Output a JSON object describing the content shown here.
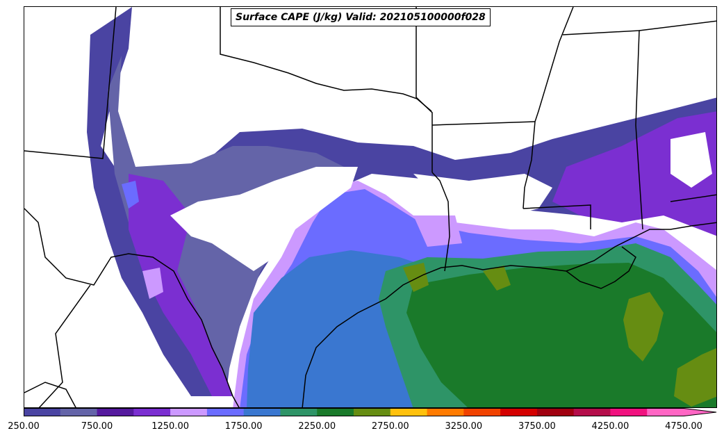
{
  "map": {
    "title": "Surface CAPE (J/kg) Valid: 202105100000f028",
    "variable": "Surface CAPE",
    "units": "J/kg",
    "valid_time": "202105100000f028",
    "region": "Texas / Louisiana / Gulf of Mexico",
    "basemap": "state and coastline boundaries",
    "colorbar": {
      "orientation": "horizontal",
      "extend": "max",
      "levels": [
        250,
        500,
        750,
        1000,
        1250,
        1500,
        1750,
        2000,
        2250,
        2500,
        2750,
        3000,
        3250,
        3500,
        3750,
        4000,
        4250,
        4500,
        4750
      ],
      "colors": [
        "#4a44a2",
        "#6464a8",
        "#551a9e",
        "#7b2fd1",
        "#cc99ff",
        "#6b6cff",
        "#3a77d0",
        "#2e9467",
        "#1a7a2a",
        "#668d12",
        "#ffc10d",
        "#ff7b00",
        "#f04200",
        "#d40000",
        "#a00010",
        "#b40d4a",
        "#f0127f",
        "#ff66c4"
      ],
      "tick_labels": [
        "250.00",
        "750.00",
        "1250.00",
        "1750.00",
        "2250.00",
        "2750.00",
        "3250.00",
        "3750.00",
        "4250.00",
        "4750.00"
      ]
    },
    "fields": {
      "land_low": "#4a44a2",
      "land_mid": "#6464a8",
      "land_purple": "#7b2fd1",
      "lavender": "#cc99ff",
      "blue": "#6b6cff",
      "deep_blue": "#3a77d0",
      "teal": "#2e9467",
      "green": "#1a7a2a",
      "olive": "#668d12"
    }
  }
}
